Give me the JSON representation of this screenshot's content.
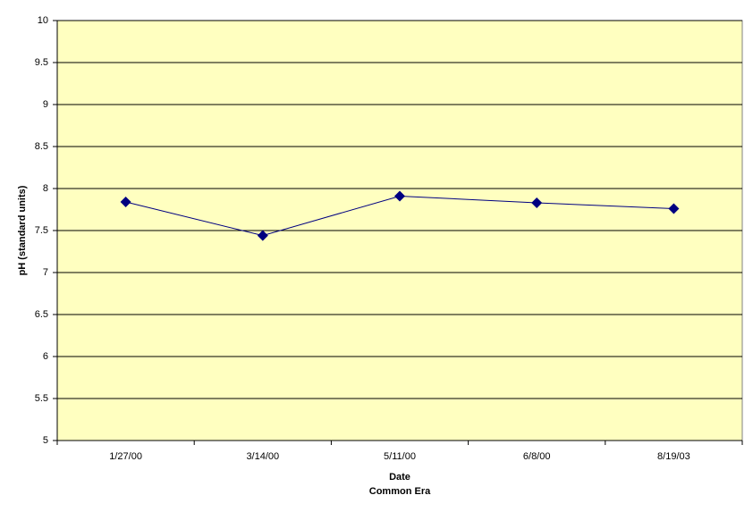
{
  "chart_data": {
    "type": "line",
    "categories": [
      "1/27/00",
      "3/14/00",
      "5/11/00",
      "6/8/00",
      "8/19/03"
    ],
    "values": [
      7.84,
      7.44,
      7.91,
      7.83,
      7.76
    ],
    "color": "#000080",
    "xlabel": [
      "Date",
      "Common Era"
    ],
    "ylabel": "pH (standard units)",
    "ylim": [
      5,
      10
    ],
    "yticks": [
      5,
      5.5,
      6,
      6.5,
      7,
      7.5,
      8,
      8.5,
      9,
      9.5,
      10
    ],
    "grid": true,
    "background": "#ffffc0"
  }
}
